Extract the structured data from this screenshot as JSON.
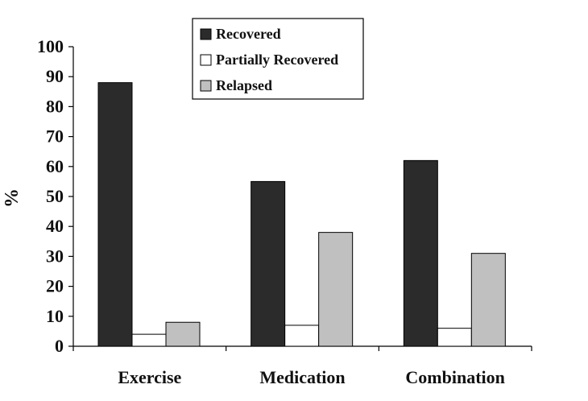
{
  "chart_data": {
    "type": "bar",
    "categories": [
      "Exercise",
      "Medication",
      "Combination"
    ],
    "series": [
      {
        "name": "Recovered",
        "values": [
          88,
          55,
          62
        ],
        "color": "#2b2b2b"
      },
      {
        "name": "Partially Recovered",
        "values": [
          4,
          7,
          6
        ],
        "color": "#ffffff"
      },
      {
        "name": "Relapsed",
        "values": [
          8,
          38,
          31
        ],
        "color": "#c0c0c0"
      }
    ],
    "title": "",
    "xlabel": "",
    "ylabel": "%",
    "ylim": [
      0,
      100
    ],
    "yticks": [
      0,
      10,
      20,
      30,
      40,
      50,
      60,
      70,
      80,
      90,
      100
    ],
    "grid": false,
    "legend": {
      "position": "top-center",
      "boxed": true
    }
  }
}
